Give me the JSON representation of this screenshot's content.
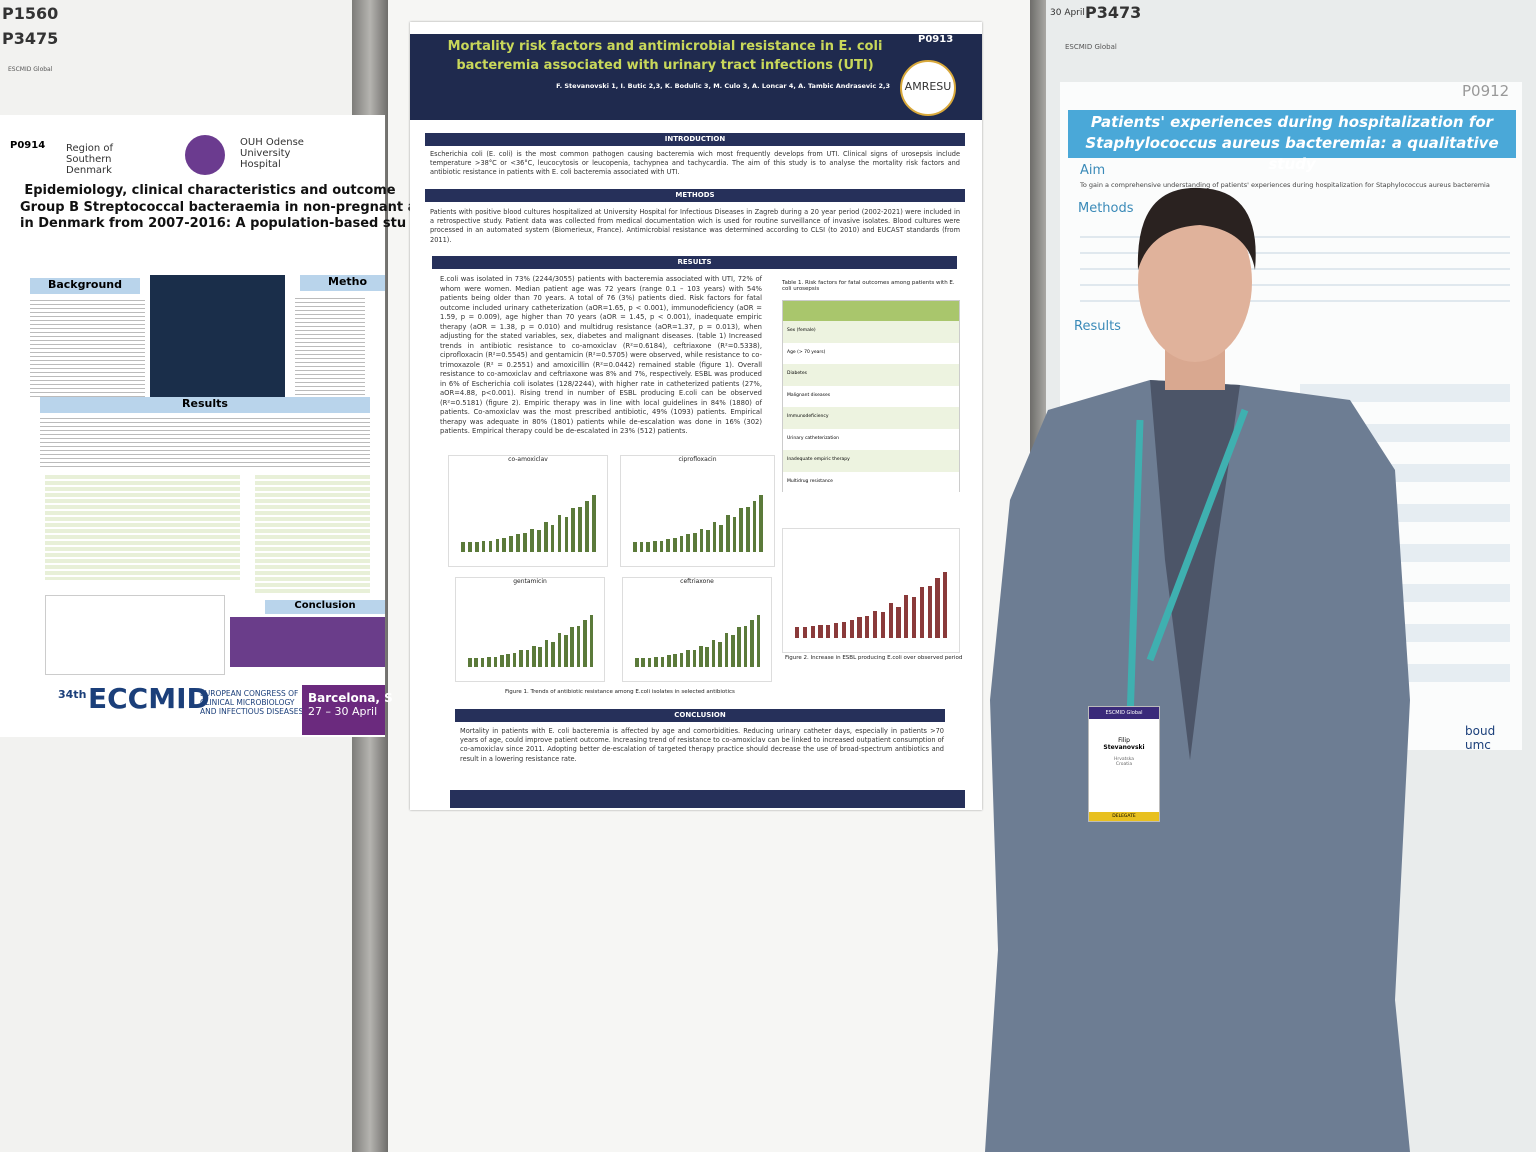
{
  "left_poster": {
    "board_ids": [
      "P1560",
      "P3475"
    ],
    "organizer": "ESCMID Global",
    "number": "P0914",
    "logos": [
      "Region of Southern Denmark",
      "OUH Odense University Hospital"
    ],
    "title": [
      "Epidemiology, clinical characteristics and outcome",
      "Group B Streptococcal bacteraemia in non-pregnant a",
      "in Denmark from 2007-2016: A population-based stu"
    ],
    "sections": [
      "Background",
      "Metho",
      "Results",
      "Conclusion"
    ],
    "footer": {
      "edition": "34th",
      "name": "ECCMID",
      "full_name": "EUROPEAN CONGRESS OF CLINICAL MICROBIOLOGY AND INFECTIOUS DISEASES",
      "city": "Barcelona, S",
      "dates": "27 – 30 April"
    }
  },
  "center_poster": {
    "number": "P0913",
    "title": [
      "Mortality risk factors and antimicrobial resistance in E. coli",
      "bacteremia associated with urinary tract infections (UTI)"
    ],
    "authors": "F. Stevanovski 1, I. Butic 2,3, K. Bodulic 3, M. Culo 3, A. Loncar 4, A. Tambic Andrasevic 2,3",
    "logo": "AMRESU",
    "introduction": {
      "heading": "INTRODUCTION",
      "text": "Escherichia coli (E. coli) is the most common pathogen causing bacteremia wich most frequently develops from UTI. Clinical signs of urosepsis include temperature >38°C or <36°C, leucocytosis or leucopenia, tachypnea and tachycardia. The aim of this study is to analyse the mortality risk factors and antibiotic resistance in patients with E. coli bacteremia associated with UTI."
    },
    "methods": {
      "heading": "METHODS",
      "text": "Patients with positive blood cultures hospitalized at University Hospital for Infectious Diseases in Zagreb during a 20 year period (2002-2021) were included in a retrospective study. Patient data was collected from medical documentation wich is used for routine surveillance of invasive isolates. Blood cultures were processed in an automated system (Biomerieux, France). Antimicrobial resistance was determined according to CLSI (to 2010) and EUCAST standards (from 2011)."
    },
    "results": {
      "heading": "RESULTS",
      "text": "E.coli was isolated in 73% (2244/3055) patients with bacteremia associated with UTI, 72% of whom were women. Median patient age was 72 years (range 0.1 – 103 years) with 54% patients being older than 70 years. A total of 76 (3%) patients died. Risk factors for fatal outcome included urinary catheterization (aOR=1.65, p < 0.001), immunodeficiency (aOR = 1.59, p = 0.009), age higher than 70 years (aOR = 1.45, p < 0.001), inadequate empiric therapy (aOR = 1.38, p = 0.010) and multidrug resistance (aOR=1.37, p = 0.013), when adjusting for the stated variables, sex, diabetes and malignant diseases. (table 1) Increased trends in antibiotic resistance to co-amoxiclav (R²=0.6184), ceftriaxone (R²=0.5338), ciprofloxacin (R²=0.5545) and gentamicin (R²=0.5705) were observed, while resistance to co-trimoxazole (R² = 0.2551) and amoxicillin (R²=0.0442) remained stable (figure 1). Overall resistance to co-amoxiclav and ceftriaxone was 8% and 7%, respectively. ESBL was produced in 6% of Escherichia coli isolates (128/2244), with higher rate in catheterized patients (27%, aOR=4.88, p<0.001). Rising trend in number of ESBL producing E.coli can be observed (R²=0.5181) (figure 2). Empiric therapy was in line with local guidelines in 84% (1880) of patients. Co-amoxiclav was the most prescribed antibiotic, 49% (1093) patients. Empirical therapy was adequate in 80% (1801) patients while de-escalation was done in 16% (302) patients. Empirical therapy could be de-escalated in 23% (512) patients."
    },
    "charts": [
      "co-amoxiclav",
      "ciprofloxacin",
      "gentamicin",
      "ceftriaxone"
    ],
    "figure1_caption": "Figure 1. Trends of antibiotic resistance among E.coli isolates in selected antibiotics",
    "table_caption": "Table 1. Risk factors for fatal outcomes among patients with E. coli urosepsis",
    "table_rows": [
      "Sex (female)",
      "Age (> 70 years)",
      "Diabetes",
      "Malignant diseases",
      "Immunodeficiency",
      "Urinary catheterization",
      "Inadequate empiric therapy",
      "Multidrug resistance"
    ],
    "figure2_caption": "Figure 2. Increase in ESBL producing E.coli over observed period",
    "conclusion": {
      "heading": "CONCLUSION",
      "text": "Mortality in patients with E. coli bacteremia is affected by age and comorbidities. Reducing urinary catheter days, especially in patients >70 years of age, could improve patient outcome. Increasing trend of resistance to co-amoxiclav can be linked to increased outpatient consumption of co-amoxiclav since 2011. Adopting better de-escalation of targeted therapy practice should decrease the use of broad-spectrum antibiotics and result in a lowering resistance rate."
    }
  },
  "right_poster": {
    "date": "30 April",
    "board_id": "P3473",
    "organizer": "ESCMID Global",
    "number": "P0912",
    "title": [
      "Patients' experiences during hospitalization for",
      "Staphylococcus aureus bacteremia: a qualitative study"
    ],
    "aim_heading": "Aim",
    "aim_text": "To gain a comprehensive understanding of patients' experiences during hospitalization for Staphylococcus aureus bacteremia",
    "methods_heading": "Methods",
    "results_heading": "Results",
    "footer": "boud umc"
  },
  "badge": {
    "organizer": "ESCMID Global",
    "first_name": "Filip",
    "last_name": "Stevanovski",
    "country_local": "Hrvatska",
    "country": "Croatia",
    "role": "DELEGATE"
  }
}
